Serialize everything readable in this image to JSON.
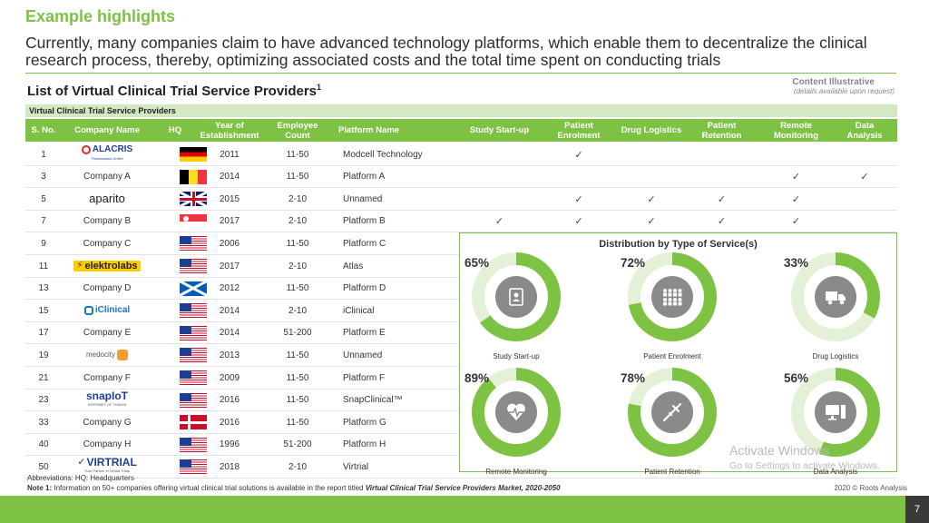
{
  "header": {
    "title": "Example highlights",
    "subtitle": "Currently, many companies claim to have advanced technology platforms, which enable them to decentralize the clinical research process, thereby, optimizing associated costs and the total time spent on conducting trials"
  },
  "list": {
    "title": "List of Virtual Clinical Trial Service Providers",
    "sup": "1",
    "illustrative": "Content Illustrative",
    "illustrative_sub": "(details available upon request)",
    "table_title": "Virtual Clinical Trial Service Providers"
  },
  "columns": {
    "sno": "S. No.",
    "company": "Company Name",
    "hq": "HQ",
    "year": "Year of Establishment",
    "employee": "Employee Count",
    "platform": "Platform Name",
    "startup": "Study Start-up",
    "enrolment": "Patient Enrolment",
    "logistics": "Drug Logistics",
    "retention": "Patient Retention",
    "monitoring": "Remote Monitoring",
    "analysis": "Data Analysis"
  },
  "check_mark": "✓",
  "rows": [
    {
      "sno": "1",
      "company": "ALACRIS",
      "company_sub": "Theranostics GmbH",
      "logo": "alacris",
      "hq": "de",
      "year": "2011",
      "employees": "11-50",
      "platform": "Modcell Technology",
      "checks": [
        false,
        true,
        false,
        false,
        false,
        false
      ]
    },
    {
      "sno": "3",
      "company": "Company A",
      "logo": "",
      "hq": "be",
      "year": "2014",
      "employees": "11-50",
      "platform": "Platform A",
      "checks": [
        false,
        false,
        false,
        false,
        true,
        true
      ]
    },
    {
      "sno": "5",
      "company": "aparito",
      "logo": "aparito",
      "hq": "uk",
      "year": "2015",
      "employees": "2-10",
      "platform": "Unnamed",
      "checks": [
        false,
        true,
        true,
        true,
        true,
        false
      ]
    },
    {
      "sno": "7",
      "company": "Company B",
      "logo": "",
      "hq": "sg",
      "year": "2017",
      "employees": "2-10",
      "platform": "Platform B",
      "checks": [
        true,
        true,
        true,
        true,
        true,
        false
      ]
    },
    {
      "sno": "9",
      "company": "Company C",
      "logo": "",
      "hq": "us",
      "year": "2006",
      "employees": "11-50",
      "platform": "Platform C",
      "checks": [
        false,
        false,
        false,
        false,
        false,
        false
      ]
    },
    {
      "sno": "11",
      "company": "elektrolabs",
      "logo": "elektrolabs",
      "hq": "us",
      "year": "2017",
      "employees": "2-10",
      "platform": "Atlas",
      "checks": [
        false,
        false,
        false,
        false,
        false,
        false
      ]
    },
    {
      "sno": "13",
      "company": "Company D",
      "logo": "",
      "hq": "sc",
      "year": "2012",
      "employees": "11-50",
      "platform": "Platform D",
      "checks": [
        false,
        false,
        false,
        false,
        false,
        false
      ]
    },
    {
      "sno": "15",
      "company": "iClinical",
      "logo": "iclinical",
      "hq": "us",
      "year": "2014",
      "employees": "2-10",
      "platform": "iClinical",
      "checks": [
        false,
        false,
        false,
        false,
        false,
        false
      ]
    },
    {
      "sno": "17",
      "company": "Company E",
      "logo": "",
      "hq": "us",
      "year": "2014",
      "employees": "51-200",
      "platform": "Platform E",
      "checks": [
        false,
        false,
        false,
        false,
        false,
        false
      ]
    },
    {
      "sno": "19",
      "company": "medocity",
      "logo": "medocity",
      "hq": "us",
      "year": "2013",
      "employees": "11-50",
      "platform": "Unnamed",
      "checks": [
        false,
        false,
        false,
        false,
        false,
        false
      ]
    },
    {
      "sno": "21",
      "company": "Company F",
      "logo": "",
      "hq": "us",
      "year": "2009",
      "employees": "11-50",
      "platform": "Platform F",
      "checks": [
        false,
        false,
        false,
        false,
        false,
        false
      ]
    },
    {
      "sno": "23",
      "company": "snapIoT",
      "company_sub": "INTERNET OF THINGS",
      "logo": "snapiot",
      "hq": "us",
      "year": "2016",
      "employees": "11-50",
      "platform": "SnapClinical™",
      "checks": [
        false,
        false,
        false,
        false,
        false,
        false
      ]
    },
    {
      "sno": "33",
      "company": "Company G",
      "logo": "",
      "hq": "dk",
      "year": "2016",
      "employees": "11-50",
      "platform": "Platform G",
      "checks": [
        false,
        false,
        false,
        false,
        false,
        false
      ]
    },
    {
      "sno": "40",
      "company": "Company H",
      "logo": "",
      "hq": "us",
      "year": "1996",
      "employees": "51-200",
      "platform": "Platform H",
      "checks": [
        false,
        false,
        false,
        false,
        false,
        false
      ]
    },
    {
      "sno": "50",
      "company": "VIRTRIAL",
      "company_sub": "Your Partner in Virtual Trials",
      "logo": "virtrial",
      "hq": "us",
      "year": "2018",
      "employees": "2-10",
      "platform": "Virtrial",
      "checks": [
        false,
        false,
        false,
        false,
        false,
        false
      ]
    }
  ],
  "chart_data": {
    "type": "pie",
    "title": "Distribution by Type of Service(s)",
    "series": [
      {
        "name": "Study Start-up",
        "value": 65,
        "label": "65%",
        "icon": "clipboard-icon"
      },
      {
        "name": "Patient Enrolment",
        "value": 72,
        "label": "72%",
        "icon": "people-group-icon"
      },
      {
        "name": "Drug Logistics",
        "value": 33,
        "label": "33%",
        "icon": "truck-icon"
      },
      {
        "name": "Remote Monitoring",
        "value": 89,
        "label": "89%",
        "icon": "heart-pulse-icon"
      },
      {
        "name": "Patient Retention",
        "value": 78,
        "label": "78%",
        "icon": "syringe-icon"
      },
      {
        "name": "Data Analysis",
        "value": 56,
        "label": "56%",
        "icon": "computer-icon"
      }
    ],
    "colors": {
      "filled": "#7dc243",
      "remainder": "#e4f1d6",
      "center": "#8a8a8a"
    }
  },
  "footer": {
    "abbreviations": "Abbreviations: HQ: Headquarters",
    "note_label": "Note 1:",
    "note_text": " Information on 50+ companies offering virtual clinical trial solutions is available in the report titled ",
    "note_report": "Virtual Clinical Trial Service Providers Market, 2020-2050",
    "copyright": "2020 © Roots Analysis",
    "page_number": "7"
  },
  "watermark": {
    "line1": "Activate Windows",
    "line2": "Go to Settings to activate Windows."
  }
}
